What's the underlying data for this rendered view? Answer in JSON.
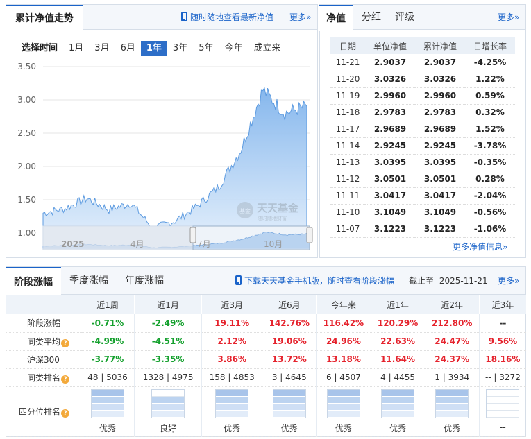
{
  "trend": {
    "tab": "累计净值走势",
    "promo": "随时随地查看最新净值",
    "more": "更多»",
    "filter_label": "选择时间",
    "ranges": [
      "1月",
      "3月",
      "6月",
      "1年",
      "3年",
      "5年",
      "今年",
      "成立来"
    ],
    "active_range": "1年",
    "y_ticks": [
      "3.50",
      "3.00",
      "2.50",
      "2.00",
      "1.50",
      "1.00"
    ],
    "nav_labels": [
      "2025",
      "4月",
      "7月",
      "10月"
    ],
    "watermark_main": "天天基金",
    "watermark_sub": "随时随地财富",
    "watermark_icon": "基金"
  },
  "chart_data": {
    "type": "area",
    "ylim": [
      1.0,
      3.5
    ],
    "y_ticks": [
      3.5,
      3.0,
      2.5,
      2.0,
      1.5,
      1.0
    ],
    "x": [
      "2024-11",
      "2024-12",
      "2025-01",
      "2025-02",
      "2025-03",
      "2025-04",
      "2025-05",
      "2025-06",
      "2025-07",
      "2025-08",
      "2025-09",
      "2025-10",
      "2025-11-21"
    ],
    "values": [
      1.3,
      1.37,
      1.52,
      1.35,
      1.45,
      1.07,
      1.18,
      1.4,
      1.7,
      2.25,
      3.15,
      2.8,
      2.9037
    ]
  },
  "nav_panel": {
    "tabs": [
      "净值",
      "分红",
      "评级"
    ],
    "more": "更多»",
    "headers": [
      "日期",
      "单位净值",
      "累计净值",
      "日增长率"
    ],
    "rows": [
      {
        "date": "11-21",
        "unit": "2.9037",
        "acc": "2.9037",
        "chg": "-4.25%",
        "dir": "down"
      },
      {
        "date": "11-20",
        "unit": "3.0326",
        "acc": "3.0326",
        "chg": "1.22%",
        "dir": "up"
      },
      {
        "date": "11-19",
        "unit": "2.9960",
        "acc": "2.9960",
        "chg": "0.59%",
        "dir": "up"
      },
      {
        "date": "11-18",
        "unit": "2.9783",
        "acc": "2.9783",
        "chg": "0.32%",
        "dir": "up"
      },
      {
        "date": "11-17",
        "unit": "2.9689",
        "acc": "2.9689",
        "chg": "1.52%",
        "dir": "up"
      },
      {
        "date": "11-14",
        "unit": "2.9245",
        "acc": "2.9245",
        "chg": "-3.78%",
        "dir": "down"
      },
      {
        "date": "11-13",
        "unit": "3.0395",
        "acc": "3.0395",
        "chg": "-0.35%",
        "dir": "down"
      },
      {
        "date": "11-12",
        "unit": "3.0501",
        "acc": "3.0501",
        "chg": "0.28%",
        "dir": "up"
      },
      {
        "date": "11-11",
        "unit": "3.0417",
        "acc": "3.0417",
        "chg": "-2.04%",
        "dir": "down"
      },
      {
        "date": "11-10",
        "unit": "3.1049",
        "acc": "3.1049",
        "chg": "-0.56%",
        "dir": "down"
      },
      {
        "date": "11-07",
        "unit": "3.1223",
        "acc": "3.1223",
        "chg": "-1.06%",
        "dir": "down"
      }
    ],
    "more_info": "更多净值信息»"
  },
  "performance": {
    "tabs": [
      "阶段涨幅",
      "季度涨幅",
      "年度涨幅"
    ],
    "promo": "下载天天基金手机版，随时查看阶段涨幅",
    "cutoff_label": "截止至",
    "cutoff_date": "2025-11-21",
    "more": "更多»",
    "columns": [
      "近1周",
      "近1月",
      "近3月",
      "近6月",
      "今年来",
      "近1年",
      "近2年",
      "近3年"
    ],
    "rows": [
      {
        "label": "阶段涨幅",
        "help": false,
        "bold": true,
        "cells": [
          {
            "v": "-0.71%",
            "c": "green"
          },
          {
            "v": "-2.49%",
            "c": "green"
          },
          {
            "v": "19.11%",
            "c": "red"
          },
          {
            "v": "142.76%",
            "c": "red"
          },
          {
            "v": "116.42%",
            "c": "red"
          },
          {
            "v": "120.29%",
            "c": "red"
          },
          {
            "v": "212.80%",
            "c": "red"
          },
          {
            "v": "--",
            "c": ""
          }
        ]
      },
      {
        "label": "同类平均",
        "help": true,
        "bold": true,
        "cells": [
          {
            "v": "-4.99%",
            "c": "green"
          },
          {
            "v": "-4.51%",
            "c": "green"
          },
          {
            "v": "2.12%",
            "c": "red"
          },
          {
            "v": "19.06%",
            "c": "red"
          },
          {
            "v": "24.96%",
            "c": "red"
          },
          {
            "v": "22.63%",
            "c": "red"
          },
          {
            "v": "24.47%",
            "c": "red"
          },
          {
            "v": "9.56%",
            "c": "red"
          }
        ]
      },
      {
        "label": "沪深300",
        "help": false,
        "bold": true,
        "cells": [
          {
            "v": "-3.77%",
            "c": "green"
          },
          {
            "v": "-3.35%",
            "c": "green"
          },
          {
            "v": "3.86%",
            "c": "red"
          },
          {
            "v": "13.72%",
            "c": "red"
          },
          {
            "v": "13.18%",
            "c": "red"
          },
          {
            "v": "11.64%",
            "c": "red"
          },
          {
            "v": "24.37%",
            "c": "red"
          },
          {
            "v": "18.16%",
            "c": "red"
          }
        ]
      },
      {
        "label": "同类排名",
        "help": true,
        "bold": false,
        "cells": [
          {
            "v": "48 | 5036",
            "c": ""
          },
          {
            "v": "1328 | 4975",
            "c": ""
          },
          {
            "v": "158 | 4853",
            "c": ""
          },
          {
            "v": "3 | 4645",
            "c": ""
          },
          {
            "v": "6 | 4507",
            "c": ""
          },
          {
            "v": "4 | 4455",
            "c": ""
          },
          {
            "v": "1 | 3934",
            "c": ""
          },
          {
            "v": "-- | 3272",
            "c": ""
          }
        ]
      }
    ],
    "quartile_label": "四分位排名",
    "quartiles": [
      {
        "level": 4,
        "text": "优秀"
      },
      {
        "level": 3,
        "text": "良好"
      },
      {
        "level": 4,
        "text": "优秀"
      },
      {
        "level": 4,
        "text": "优秀"
      },
      {
        "level": 4,
        "text": "优秀"
      },
      {
        "level": 4,
        "text": "优秀"
      },
      {
        "level": 4,
        "text": "优秀"
      },
      {
        "level": 0,
        "text": "--"
      }
    ]
  },
  "colors": {
    "accent": "#1a63c9",
    "up": "#e5222c",
    "down": "#14a02d",
    "area": "#8fbdf0"
  }
}
